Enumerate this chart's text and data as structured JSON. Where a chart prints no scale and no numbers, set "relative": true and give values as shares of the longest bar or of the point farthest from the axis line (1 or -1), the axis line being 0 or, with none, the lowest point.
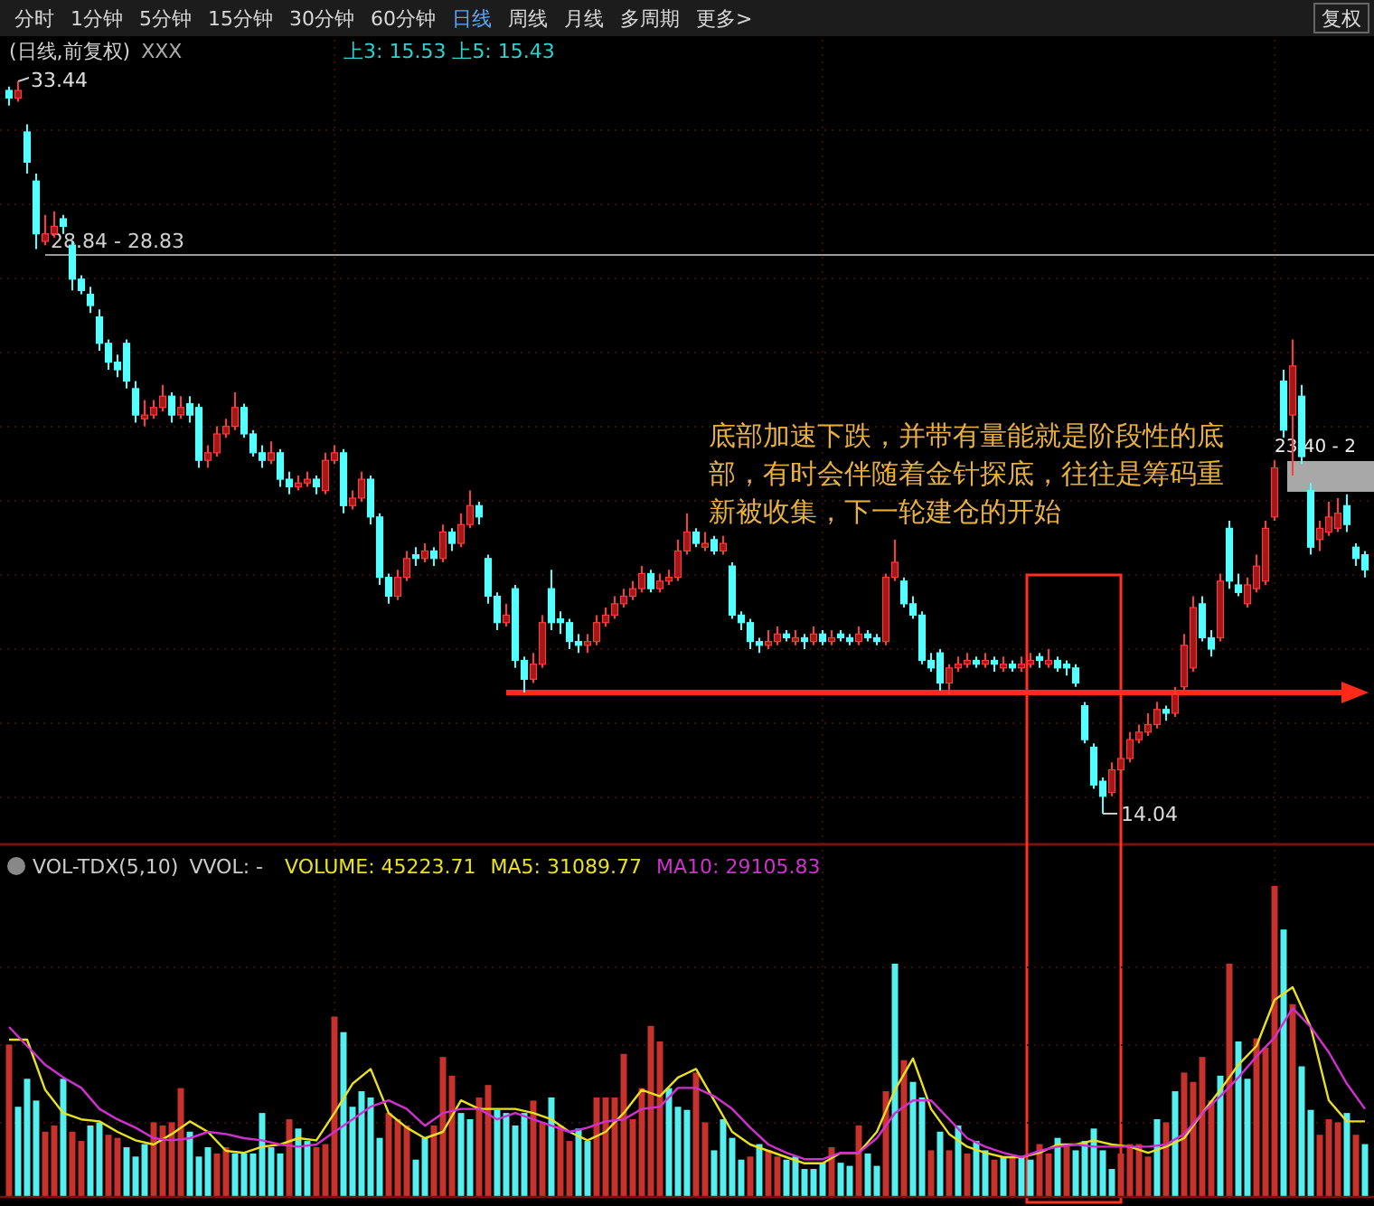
{
  "chart_data": [
    {
      "type": "candlestick",
      "title": "(日线,前复权)",
      "categories": [
        null,
        null,
        null,
        null,
        null,
        null,
        null,
        null,
        null,
        null,
        null,
        null,
        null,
        null,
        null,
        null,
        null,
        null,
        null,
        null,
        null,
        null,
        null,
        null,
        null,
        null,
        null,
        null,
        null,
        null,
        null,
        null,
        null,
        null,
        null,
        null,
        null,
        null,
        null,
        null,
        null,
        null,
        null,
        null,
        null,
        null,
        null,
        null,
        null,
        null,
        null,
        null,
        null,
        null,
        null,
        null,
        null,
        null,
        null,
        null,
        null,
        null,
        null,
        null,
        null,
        null,
        null,
        null,
        null,
        null,
        null,
        null,
        null,
        null,
        null,
        null,
        null,
        null,
        null,
        null,
        null,
        null,
        null,
        null,
        null,
        null,
        null,
        null,
        null,
        null,
        null,
        null,
        null,
        null,
        null,
        null,
        null,
        null,
        null,
        null,
        null,
        null,
        null,
        null,
        null,
        null,
        null,
        null,
        null,
        null,
        null,
        null,
        null,
        null,
        null,
        null,
        null,
        null,
        null,
        null,
        null,
        null,
        null,
        null,
        null,
        null,
        null,
        null,
        null,
        null,
        null,
        null,
        null,
        null,
        null,
        null,
        null,
        null,
        null,
        null,
        null,
        null,
        null,
        null,
        null,
        null,
        null,
        null,
        null,
        null,
        null
      ],
      "ohlc": [
        [
          33.2,
          33.3,
          32.8,
          33.0
        ],
        [
          33.0,
          33.44,
          32.9,
          33.2
        ],
        [
          32.1,
          32.3,
          31.0,
          31.3
        ],
        [
          30.8,
          31.0,
          29.0,
          29.4
        ],
        [
          29.2,
          29.9,
          29.1,
          29.4
        ],
        [
          29.4,
          30.0,
          29.3,
          29.6
        ],
        [
          29.8,
          29.9,
          29.4,
          29.6
        ],
        [
          29.1,
          29.2,
          27.9,
          28.2
        ],
        [
          28.2,
          28.3,
          27.8,
          27.9
        ],
        [
          27.8,
          28.0,
          27.3,
          27.5
        ],
        [
          27.2,
          27.4,
          26.3,
          26.5
        ],
        [
          26.5,
          26.6,
          25.8,
          26.0
        ],
        [
          26.0,
          26.2,
          25.6,
          25.8
        ],
        [
          26.5,
          26.6,
          25.3,
          25.5
        ],
        [
          25.3,
          25.5,
          24.4,
          24.6
        ],
        [
          24.5,
          25.0,
          24.3,
          24.6
        ],
        [
          24.6,
          25.0,
          24.5,
          24.8
        ],
        [
          24.8,
          25.4,
          24.7,
          25.1
        ],
        [
          25.1,
          25.2,
          24.4,
          24.6
        ],
        [
          24.6,
          25.1,
          24.5,
          24.8
        ],
        [
          24.9,
          25.1,
          24.4,
          24.6
        ],
        [
          24.8,
          24.9,
          23.2,
          23.4
        ],
        [
          23.4,
          23.8,
          23.2,
          23.6
        ],
        [
          23.6,
          24.3,
          23.5,
          24.1
        ],
        [
          24.1,
          24.5,
          24.0,
          24.3
        ],
        [
          24.3,
          25.2,
          24.2,
          24.8
        ],
        [
          24.8,
          24.9,
          24.0,
          24.1
        ],
        [
          24.1,
          24.2,
          23.5,
          23.6
        ],
        [
          23.6,
          23.8,
          23.2,
          23.4
        ],
        [
          23.4,
          23.9,
          23.3,
          23.6
        ],
        [
          23.6,
          23.7,
          22.7,
          22.9
        ],
        [
          22.9,
          23.1,
          22.5,
          22.7
        ],
        [
          22.7,
          23.0,
          22.6,
          22.8
        ],
        [
          22.8,
          23.1,
          22.7,
          22.9
        ],
        [
          22.9,
          23.0,
          22.5,
          22.7
        ],
        [
          22.6,
          23.6,
          22.5,
          23.4
        ],
        [
          23.4,
          23.8,
          23.3,
          23.6
        ],
        [
          23.6,
          23.7,
          22.0,
          22.2
        ],
        [
          22.2,
          22.6,
          22.1,
          22.4
        ],
        [
          22.4,
          23.1,
          22.3,
          22.9
        ],
        [
          22.9,
          23.0,
          21.7,
          21.9
        ],
        [
          21.9,
          22.0,
          20.1,
          20.3
        ],
        [
          20.3,
          20.4,
          19.6,
          19.8
        ],
        [
          19.8,
          20.5,
          19.7,
          20.3
        ],
        [
          20.3,
          21.0,
          20.2,
          20.8
        ],
        [
          20.9,
          21.1,
          20.6,
          20.8
        ],
        [
          20.8,
          21.2,
          20.7,
          21.0
        ],
        [
          21.0,
          21.1,
          20.6,
          20.8
        ],
        [
          20.8,
          21.7,
          20.7,
          21.5
        ],
        [
          21.5,
          21.6,
          21.0,
          21.2
        ],
        [
          21.2,
          22.0,
          21.1,
          21.7
        ],
        [
          21.7,
          22.6,
          21.6,
          22.2
        ],
        [
          22.2,
          22.3,
          21.7,
          21.9
        ],
        [
          20.8,
          20.9,
          19.6,
          19.8
        ],
        [
          19.8,
          19.9,
          18.9,
          19.1
        ],
        [
          19.1,
          19.6,
          19.0,
          19.3
        ],
        [
          20.0,
          20.1,
          17.9,
          18.1
        ],
        [
          18.1,
          18.2,
          17.25,
          17.6
        ],
        [
          17.6,
          18.3,
          17.5,
          18.0
        ],
        [
          18.0,
          19.3,
          17.9,
          19.1
        ],
        [
          20.0,
          20.5,
          18.9,
          19.1
        ],
        [
          19.2,
          19.4,
          18.8,
          19.1
        ],
        [
          19.1,
          19.2,
          18.4,
          18.6
        ],
        [
          18.6,
          18.8,
          18.3,
          18.5
        ],
        [
          18.5,
          18.8,
          18.3,
          18.6
        ],
        [
          18.6,
          19.3,
          18.5,
          19.1
        ],
        [
          19.1,
          19.5,
          19.0,
          19.3
        ],
        [
          19.3,
          19.8,
          19.2,
          19.6
        ],
        [
          19.6,
          20.0,
          19.5,
          19.8
        ],
        [
          19.8,
          20.2,
          19.7,
          20.0
        ],
        [
          20.0,
          20.6,
          19.9,
          20.4
        ],
        [
          20.4,
          20.5,
          19.9,
          20.0
        ],
        [
          20.0,
          20.4,
          19.9,
          20.2
        ],
        [
          20.2,
          20.5,
          20.1,
          20.3
        ],
        [
          20.3,
          21.3,
          20.2,
          21.0
        ],
        [
          21.0,
          22.0,
          20.9,
          21.5
        ],
        [
          21.5,
          21.6,
          21.1,
          21.2
        ],
        [
          21.1,
          21.5,
          21.0,
          21.2
        ],
        [
          21.3,
          21.4,
          20.9,
          21.0
        ],
        [
          21.0,
          21.4,
          20.9,
          21.2
        ],
        [
          20.6,
          20.7,
          19.2,
          19.3
        ],
        [
          19.3,
          19.4,
          18.9,
          19.1
        ],
        [
          19.1,
          19.2,
          18.4,
          18.6
        ],
        [
          18.6,
          18.7,
          18.3,
          18.5
        ],
        [
          18.5,
          18.9,
          18.4,
          18.6
        ],
        [
          18.6,
          19.0,
          18.5,
          18.8
        ],
        [
          18.8,
          18.9,
          18.6,
          18.7
        ],
        [
          18.6,
          18.9,
          18.5,
          18.7
        ],
        [
          18.7,
          18.8,
          18.4,
          18.6
        ],
        [
          18.6,
          19.0,
          18.5,
          18.8
        ],
        [
          18.8,
          18.9,
          18.5,
          18.6
        ],
        [
          18.6,
          18.9,
          18.5,
          18.7
        ],
        [
          18.8,
          18.9,
          18.6,
          18.7
        ],
        [
          18.7,
          18.8,
          18.5,
          18.6
        ],
        [
          18.6,
          19.0,
          18.5,
          18.8
        ],
        [
          18.8,
          18.9,
          18.6,
          18.7
        ],
        [
          18.7,
          18.8,
          18.5,
          18.6
        ],
        [
          18.6,
          20.4,
          18.5,
          20.3
        ],
        [
          20.3,
          21.3,
          20.2,
          20.7
        ],
        [
          20.2,
          20.3,
          19.5,
          19.6
        ],
        [
          19.6,
          19.8,
          19.2,
          19.3
        ],
        [
          19.3,
          19.4,
          18.0,
          18.1
        ],
        [
          18.1,
          18.3,
          17.8,
          17.9
        ],
        [
          18.3,
          18.4,
          17.3,
          17.5
        ],
        [
          17.5,
          18.0,
          17.2,
          17.9
        ],
        [
          17.9,
          18.2,
          17.8,
          18.0
        ],
        [
          18.0,
          18.3,
          17.9,
          18.1
        ],
        [
          18.1,
          18.2,
          17.9,
          18.0
        ],
        [
          18.0,
          18.3,
          17.9,
          18.1
        ],
        [
          18.1,
          18.2,
          17.8,
          18.0
        ],
        [
          17.9,
          18.2,
          17.8,
          18.0
        ],
        [
          18.0,
          18.1,
          17.8,
          17.9
        ],
        [
          17.9,
          18.2,
          17.8,
          18.0
        ],
        [
          18.0,
          18.3,
          17.9,
          18.1
        ],
        [
          18.2,
          18.3,
          17.9,
          18.1
        ],
        [
          18.0,
          18.4,
          17.9,
          18.1
        ],
        [
          18.1,
          18.2,
          17.8,
          17.9
        ],
        [
          18.0,
          18.1,
          17.7,
          17.9
        ],
        [
          17.9,
          18.0,
          17.4,
          17.5
        ],
        [
          16.9,
          17.0,
          15.9,
          16.0
        ],
        [
          15.8,
          15.9,
          14.7,
          14.8
        ],
        [
          14.9,
          15.0,
          14.04,
          14.5
        ],
        [
          14.6,
          15.4,
          14.5,
          15.2
        ],
        [
          15.2,
          15.7,
          15.1,
          15.5
        ],
        [
          15.5,
          16.2,
          15.4,
          16.0
        ],
        [
          16.0,
          16.4,
          15.9,
          16.2
        ],
        [
          16.2,
          16.7,
          16.1,
          16.4
        ],
        [
          16.4,
          17.0,
          16.3,
          16.8
        ],
        [
          16.8,
          16.9,
          16.5,
          16.7
        ],
        [
          16.7,
          17.4,
          16.6,
          17.2
        ],
        [
          17.4,
          18.8,
          17.3,
          18.5
        ],
        [
          17.9,
          19.8,
          17.8,
          19.5
        ],
        [
          19.6,
          19.8,
          18.6,
          18.7
        ],
        [
          18.7,
          18.9,
          18.2,
          18.4
        ],
        [
          18.7,
          20.4,
          18.6,
          20.2
        ],
        [
          21.6,
          21.8,
          20.0,
          20.2
        ],
        [
          20.1,
          20.4,
          19.8,
          19.9
        ],
        [
          19.6,
          20.3,
          19.5,
          20.1
        ],
        [
          20.0,
          20.9,
          19.9,
          20.6
        ],
        [
          20.2,
          21.8,
          20.1,
          21.6
        ],
        [
          21.9,
          23.4,
          21.8,
          23.2
        ],
        [
          25.5,
          25.8,
          24.0,
          24.2
        ],
        [
          24.6,
          26.6,
          23.0,
          25.9
        ],
        [
          25.1,
          25.4,
          23.3,
          23.5
        ],
        [
          22.6,
          22.8,
          20.9,
          21.1
        ],
        [
          21.3,
          21.8,
          21.0,
          21.6
        ],
        [
          21.5,
          22.3,
          21.4,
          21.9
        ],
        [
          21.6,
          22.4,
          21.5,
          22.0
        ],
        [
          22.2,
          22.5,
          21.5,
          21.7
        ],
        [
          21.1,
          21.2,
          20.6,
          20.8
        ],
        [
          20.9,
          21.0,
          20.3,
          20.5
        ]
      ],
      "ref_lines": [
        {
          "axis": "y",
          "value": 28.84,
          "label": "28.84 - 28.83",
          "color": "#9a9a9a"
        },
        {
          "axis": "y",
          "value": 17.25,
          "color": "#ff2a1a"
        }
      ],
      "annotations": [
        "分时 1分钟 5分钟 15分钟 30分钟 60分钟 日线 周线 月线 多周期 更多>",
        "复权",
        "XXX",
        "上3: 15.53 上5: 15.43",
        "底部加速下跌，并带有量能就是阶段性的底部，有时会伴随着金针探底，往往是筹码重新被收集，下一轮建仓的开始",
        "33.44",
        "14.04",
        "23.40 - 2"
      ]
    },
    {
      "type": "bar",
      "title": "VOL-TDX(5,10)",
      "relative": true,
      "categories": [
        null,
        null,
        null,
        null,
        null,
        null,
        null,
        null,
        null,
        null,
        null,
        null,
        null,
        null,
        null,
        null,
        null,
        null,
        null,
        null,
        null,
        null,
        null,
        null,
        null,
        null,
        null,
        null,
        null,
        null,
        null,
        null,
        null,
        null,
        null,
        null,
        null,
        null,
        null,
        null,
        null,
        null,
        null,
        null,
        null,
        null,
        null,
        null,
        null,
        null,
        null,
        null,
        null,
        null,
        null,
        null,
        null,
        null,
        null,
        null,
        null,
        null,
        null,
        null,
        null,
        null,
        null,
        null,
        null,
        null,
        null,
        null,
        null,
        null,
        null,
        null,
        null,
        null,
        null,
        null,
        null,
        null,
        null,
        null,
        null,
        null,
        null,
        null,
        null,
        null,
        null,
        null,
        null,
        null,
        null,
        null,
        null,
        null,
        null,
        null,
        null,
        null,
        null,
        null,
        null,
        null,
        null,
        null,
        null,
        null,
        null,
        null,
        null,
        null,
        null,
        null,
        null,
        null,
        null,
        null,
        null,
        null,
        null,
        null,
        null,
        null,
        null,
        null,
        null,
        null,
        null,
        null,
        null,
        null,
        null,
        null,
        null,
        null,
        null,
        null,
        null,
        null,
        null,
        null,
        null,
        null,
        null,
        null,
        null,
        null,
        null
      ],
      "series": [
        {
          "name": "VOLUME: 45223.71",
          "values": [
            0.49,
            0.29,
            0.38,
            0.31,
            0.21,
            0.23,
            0.38,
            0.21,
            0.18,
            0.23,
            0.24,
            0.2,
            0.19,
            0.16,
            0.13,
            0.17,
            0.24,
            0.23,
            0.24,
            0.35,
            0.21,
            0.13,
            0.16,
            0.14,
            0.16,
            0.14,
            0.14,
            0.14,
            0.27,
            0.16,
            0.14,
            0.25,
            0.22,
            0.18,
            0.16,
            0.17,
            0.58,
            0.53,
            0.29,
            0.34,
            0.32,
            0.19,
            0.27,
            0.25,
            0.23,
            0.12,
            0.19,
            0.23,
            0.45,
            0.39,
            0.27,
            0.25,
            0.32,
            0.36,
            0.28,
            0.27,
            0.23,
            0.27,
            0.31,
            0.24,
            0.32,
            0.23,
            0.18,
            0.22,
            0.18,
            0.32,
            0.32,
            0.32,
            0.46,
            0.25,
            0.35,
            0.55,
            0.5,
            0.35,
            0.29,
            0.28,
            0.4,
            0.24,
            0.15,
            0.25,
            0.19,
            0.12,
            0.13,
            0.17,
            0.15,
            0.13,
            0.12,
            0.13,
            0.09,
            0.09,
            0.11,
            0.16,
            0.11,
            0.1,
            0.23,
            0.14,
            0.1,
            0.34,
            0.75,
            0.44,
            0.37,
            0.32,
            0.15,
            0.21,
            0.15,
            0.23,
            0.14,
            0.18,
            0.15,
            0.12,
            0.13,
            0.13,
            0.13,
            0.12,
            0.17,
            0.14,
            0.19,
            0.17,
            0.15,
            0.18,
            0.22,
            0.15,
            0.09,
            0.14,
            0.17,
            0.17,
            0.13,
            0.25,
            0.24,
            0.34,
            0.4,
            0.37,
            0.45,
            0.31,
            0.39,
            0.75,
            0.5,
            0.38,
            0.51,
            0.48,
            1,
            0.86,
            0.62,
            0.42,
            0.28,
            0.2,
            0.25,
            0.24,
            0.27,
            0.2,
            0.17
          ],
          "colors": [
            "#c8322c",
            "#54f0f0",
            "#54f0f0",
            "#54f0f0",
            "#c8322c",
            "#c8322c",
            "#54f0f0",
            "#c8322c",
            "#c8322c",
            "#54f0f0",
            "#54f0f0",
            "#c8322c",
            "#c8322c",
            "#54f0f0",
            "#54f0f0",
            "#54f0f0",
            "#c8322c",
            "#c8322c",
            "#c8322c",
            "#c8322c",
            "#54f0f0",
            "#54f0f0",
            "#54f0f0",
            "#c8322c",
            "#c8322c",
            "#54f0f0",
            "#54f0f0",
            "#54f0f0",
            "#54f0f0",
            "#54f0f0",
            "#54f0f0",
            "#c8322c",
            "#54f0f0",
            "#54f0f0",
            "#c8322c",
            "#c8322c",
            "#c8322c",
            "#54f0f0",
            "#54f0f0",
            "#54f0f0",
            "#54f0f0",
            "#54f0f0",
            "#c8322c",
            "#c8322c",
            "#c8322c",
            "#54f0f0",
            "#54f0f0",
            "#c8322c",
            "#c8322c",
            "#c8322c",
            "#54f0f0",
            "#54f0f0",
            "#c8322c",
            "#c8322c",
            "#54f0f0",
            "#54f0f0",
            "#54f0f0",
            "#54f0f0",
            "#c8322c",
            "#c8322c",
            "#54f0f0",
            "#c8322c",
            "#c8322c",
            "#54f0f0",
            "#54f0f0",
            "#c8322c",
            "#c8322c",
            "#c8322c",
            "#c8322c",
            "#c8322c",
            "#c8322c",
            "#c8322c",
            "#c8322c",
            "#54f0f0",
            "#54f0f0",
            "#54f0f0",
            "#c8322c",
            "#c8322c",
            "#54f0f0",
            "#54f0f0",
            "#54f0f0",
            "#54f0f0",
            "#c8322c",
            "#54f0f0",
            "#c8322c",
            "#c8322c",
            "#54f0f0",
            "#54f0f0",
            "#54f0f0",
            "#54f0f0",
            "#54f0f0",
            "#c8322c",
            "#54f0f0",
            "#54f0f0",
            "#c8322c",
            "#54f0f0",
            "#54f0f0",
            "#c8322c",
            "#54f0f0",
            "#c8322c",
            "#54f0f0",
            "#54f0f0",
            "#c8322c",
            "#54f0f0",
            "#c8322c",
            "#54f0f0",
            "#c8322c",
            "#54f0f0",
            "#54f0f0",
            "#c8322c",
            "#54f0f0",
            "#c8322c",
            "#54f0f0",
            "#54f0f0",
            "#c8322c",
            "#c8322c",
            "#54f0f0",
            "#c8322c",
            "#54f0f0",
            "#54f0f0",
            "#54f0f0",
            "#54f0f0",
            "#54f0f0",
            "#c8322c",
            "#c8322c",
            "#c8322c",
            "#c8322c",
            "#54f0f0",
            "#c8322c",
            "#54f0f0",
            "#c8322c",
            "#c8322c",
            "#c8322c",
            "#c8322c",
            "#54f0f0",
            "#c8322c",
            "#54f0f0",
            "#54f0f0",
            "#c8322c",
            "#c8322c",
            "#c8322c",
            "#54f0f0",
            "#c8322c",
            "#54f0f0",
            "#54f0f0",
            "#c8322c",
            "#c8322c",
            "#c8322c",
            "#54f0f0",
            "#c8322c",
            "#54f0f0"
          ]
        }
      ],
      "annotations": [
        "VVOL: -"
      ]
    },
    {
      "type": "line",
      "relative": true,
      "categories": [
        null,
        null,
        null,
        null,
        null,
        null,
        null,
        null,
        null,
        null,
        null,
        null,
        null,
        null,
        null,
        null,
        null,
        null,
        null,
        null,
        null,
        null,
        null,
        null,
        null,
        null,
        null,
        null,
        null,
        null,
        null,
        null,
        null,
        null,
        null,
        null,
        null,
        null,
        null,
        null,
        null,
        null,
        null,
        null,
        null,
        null,
        null,
        null,
        null,
        null,
        null,
        null,
        null,
        null,
        null,
        null,
        null,
        null,
        null,
        null,
        null,
        null,
        null,
        null,
        null,
        null,
        null,
        null,
        null,
        null,
        null,
        null,
        null,
        null,
        null,
        null
      ],
      "series": [
        {
          "name": "MA5: 31089.77",
          "color": "#e8e020",
          "values": [
            0.75,
            0.75,
            0.51,
            0.4,
            0.37,
            0.36,
            0.31,
            0.27,
            0.25,
            0.3,
            0.36,
            0.31,
            0.22,
            0.21,
            0.24,
            0.25,
            0.28,
            0.27,
            0.4,
            0.54,
            0.61,
            0.4,
            0.33,
            0.28,
            0.31,
            0.46,
            0.42,
            0.42,
            0.42,
            0.4,
            0.37,
            0.31,
            0.27,
            0.31,
            0.4,
            0.51,
            0.48,
            0.57,
            0.61,
            0.46,
            0.31,
            0.25,
            0.22,
            0.19,
            0.16,
            0.16,
            0.21,
            0.21,
            0.31,
            0.51,
            0.66,
            0.42,
            0.3,
            0.24,
            0.21,
            0.19,
            0.19,
            0.21,
            0.25,
            0.25,
            0.27,
            0.25,
            0.24,
            0.21,
            0.24,
            0.28,
            0.4,
            0.51,
            0.63,
            0.72,
            0.94,
            1,
            0.81,
            0.46,
            0.36,
            0.36
          ]
        },
        {
          "name": "MA10: 29105.83",
          "color": "#d030d0",
          "values": [
            0.81,
            0.72,
            0.63,
            0.57,
            0.52,
            0.42,
            0.37,
            0.33,
            0.28,
            0.27,
            0.28,
            0.31,
            0.3,
            0.28,
            0.27,
            0.25,
            0.24,
            0.25,
            0.31,
            0.37,
            0.43,
            0.46,
            0.42,
            0.34,
            0.4,
            0.42,
            0.42,
            0.37,
            0.4,
            0.37,
            0.34,
            0.31,
            0.33,
            0.36,
            0.37,
            0.42,
            0.43,
            0.52,
            0.52,
            0.48,
            0.42,
            0.33,
            0.25,
            0.21,
            0.18,
            0.18,
            0.21,
            0.21,
            0.28,
            0.4,
            0.46,
            0.46,
            0.37,
            0.28,
            0.24,
            0.21,
            0.19,
            0.22,
            0.24,
            0.25,
            0.24,
            0.24,
            0.24,
            0.24,
            0.25,
            0.3,
            0.4,
            0.48,
            0.57,
            0.67,
            0.76,
            0.9,
            0.81,
            0.69,
            0.54,
            0.42
          ]
        }
      ]
    }
  ]
}
